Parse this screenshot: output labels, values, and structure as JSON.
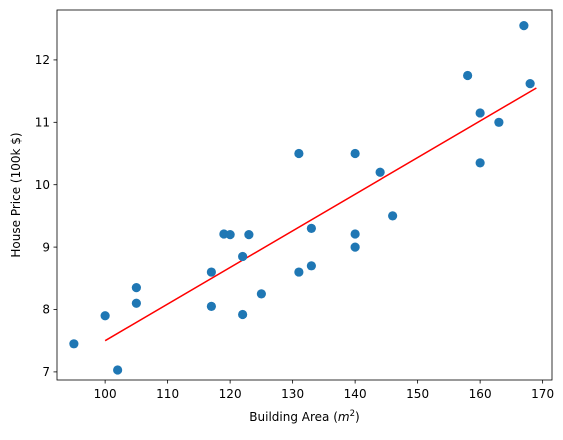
{
  "chart_data": {
    "type": "scatter",
    "title": "",
    "xlabel_prefix": "Building Area (",
    "xlabel_unit": "m",
    "xlabel_exponent": "2",
    "xlabel_suffix": ")",
    "ylabel": "House Price (100k $)",
    "xlim": [
      92.3,
      171.5
    ],
    "ylim": [
      6.87,
      12.8
    ],
    "x_ticks": [
      100,
      110,
      120,
      130,
      140,
      150,
      160,
      170
    ],
    "y_ticks": [
      7,
      8,
      9,
      10,
      11,
      12
    ],
    "grid": false,
    "legend": "none",
    "series": [
      {
        "kind": "scatter",
        "color": "#1f77b4",
        "points": [
          {
            "x": 95,
            "y": 7.45
          },
          {
            "x": 100,
            "y": 7.9
          },
          {
            "x": 102,
            "y": 7.03
          },
          {
            "x": 105,
            "y": 8.1
          },
          {
            "x": 105,
            "y": 8.35
          },
          {
            "x": 117,
            "y": 8.6
          },
          {
            "x": 117,
            "y": 8.05
          },
          {
            "x": 119,
            "y": 9.21
          },
          {
            "x": 120,
            "y": 9.2
          },
          {
            "x": 122,
            "y": 8.85
          },
          {
            "x": 122,
            "y": 7.92
          },
          {
            "x": 123,
            "y": 9.2
          },
          {
            "x": 125,
            "y": 8.25
          },
          {
            "x": 131,
            "y": 10.5
          },
          {
            "x": 131,
            "y": 8.6
          },
          {
            "x": 133,
            "y": 9.3
          },
          {
            "x": 133,
            "y": 8.7
          },
          {
            "x": 140,
            "y": 10.5
          },
          {
            "x": 140,
            "y": 9.21
          },
          {
            "x": 140,
            "y": 9.0
          },
          {
            "x": 144,
            "y": 10.2
          },
          {
            "x": 146,
            "y": 9.5
          },
          {
            "x": 158,
            "y": 11.75
          },
          {
            "x": 160,
            "y": 11.15
          },
          {
            "x": 160,
            "y": 10.35
          },
          {
            "x": 163,
            "y": 11.0
          },
          {
            "x": 167,
            "y": 12.55
          },
          {
            "x": 168,
            "y": 11.62
          }
        ]
      },
      {
        "kind": "line",
        "color": "#ff0000",
        "points": [
          {
            "x": 100,
            "y": 7.5
          },
          {
            "x": 169,
            "y": 11.55
          }
        ]
      }
    ]
  }
}
